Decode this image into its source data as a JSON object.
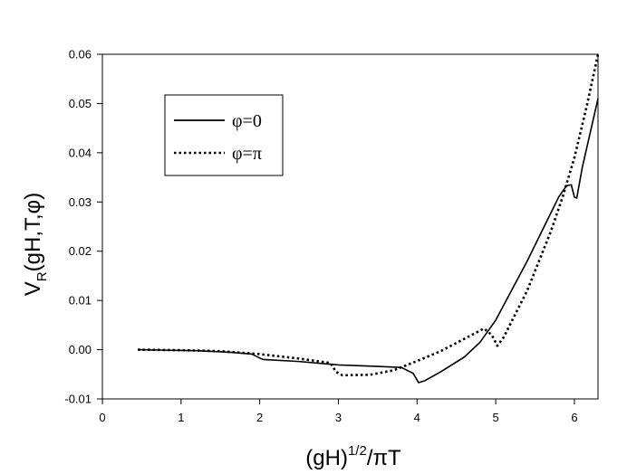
{
  "chart_data": {
    "type": "line",
    "title": "",
    "xlabel": "(gH)^{1/2}/πT",
    "ylabel": "V_R(gH,T,φ)",
    "xlabel_parts": {
      "base": "(gH)",
      "sup": "1/2",
      "tail": "/πT"
    },
    "ylabel_parts": {
      "base": "V",
      "sub": "R",
      "tail": "(gH,T,φ)"
    },
    "xlim": [
      0,
      6.3
    ],
    "ylim": [
      -0.01,
      0.06
    ],
    "xticks": [
      0,
      1,
      2,
      3,
      4,
      5,
      6
    ],
    "xtick_labels": [
      "0",
      "1",
      "2",
      "3",
      "4",
      "5",
      "6"
    ],
    "yticks": [
      -0.01,
      0.0,
      0.01,
      0.02,
      0.03,
      0.04,
      0.05,
      0.06
    ],
    "ytick_labels": [
      "-0.01",
      "0.00",
      "0.01",
      "0.02",
      "0.03",
      "0.04",
      "0.05",
      "0.06"
    ],
    "grid": false,
    "legend": {
      "placement": "upper-left"
    },
    "series": [
      {
        "name": "φ=0",
        "style": "solid",
        "color": "#000000",
        "points": [
          [
            0.45,
            0.0
          ],
          [
            0.8,
            -0.0001
          ],
          [
            1.2,
            -0.0002
          ],
          [
            1.6,
            -0.0005
          ],
          [
            1.9,
            -0.0009
          ],
          [
            2.0,
            -0.0017
          ],
          [
            2.05,
            -0.002
          ],
          [
            2.5,
            -0.0024
          ],
          [
            3.0,
            -0.0031
          ],
          [
            3.5,
            -0.0034
          ],
          [
            3.8,
            -0.0036
          ],
          [
            3.95,
            -0.0048
          ],
          [
            4.02,
            -0.0067
          ],
          [
            4.1,
            -0.0063
          ],
          [
            4.3,
            -0.0045
          ],
          [
            4.6,
            -0.0015
          ],
          [
            4.8,
            0.0015
          ],
          [
            5.0,
            0.006
          ],
          [
            5.2,
            0.012
          ],
          [
            5.4,
            0.018
          ],
          [
            5.6,
            0.0245
          ],
          [
            5.8,
            0.031
          ],
          [
            5.9,
            0.0333
          ],
          [
            5.96,
            0.0335
          ],
          [
            6.0,
            0.031
          ],
          [
            6.03,
            0.0308
          ],
          [
            6.1,
            0.037
          ],
          [
            6.2,
            0.044
          ],
          [
            6.3,
            0.051
          ]
        ]
      },
      {
        "name": "φ=π",
        "style": "dotted",
        "color": "#000000",
        "points": [
          [
            0.45,
            0.0
          ],
          [
            1.0,
            -0.0001
          ],
          [
            1.5,
            -0.0003
          ],
          [
            2.0,
            -0.0009
          ],
          [
            2.5,
            -0.0018
          ],
          [
            2.9,
            -0.0027
          ],
          [
            2.97,
            -0.0045
          ],
          [
            3.05,
            -0.0052
          ],
          [
            3.4,
            -0.0051
          ],
          [
            3.7,
            -0.0042
          ],
          [
            4.0,
            -0.0023
          ],
          [
            4.3,
            -0.0003
          ],
          [
            4.6,
            0.0022
          ],
          [
            4.85,
            0.0043
          ],
          [
            4.95,
            0.003
          ],
          [
            5.02,
            0.0008
          ],
          [
            5.1,
            0.0025
          ],
          [
            5.4,
            0.012
          ],
          [
            5.7,
            0.024
          ],
          [
            5.85,
            0.031
          ],
          [
            6.0,
            0.039
          ],
          [
            6.15,
            0.049
          ],
          [
            6.3,
            0.06
          ]
        ]
      }
    ]
  }
}
